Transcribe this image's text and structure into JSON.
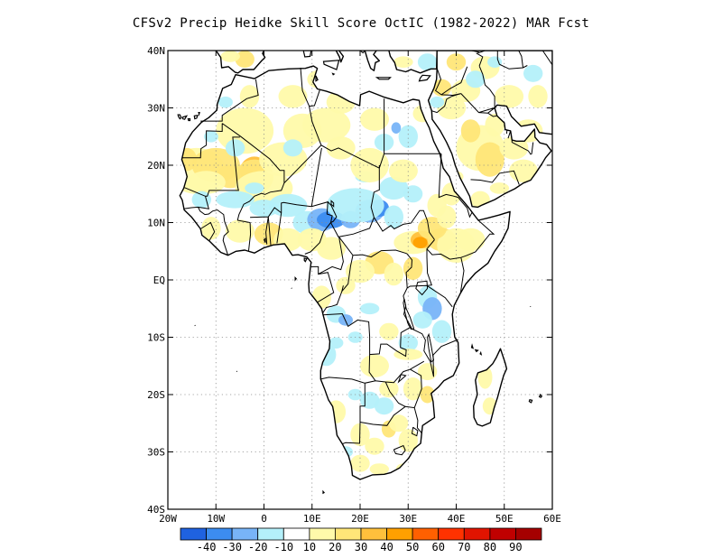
{
  "title": "CFSv2 Precip Heidke Skill Score OctIC (1982-2022) MAR Fcst",
  "map": {
    "lon_range": [
      -20,
      60
    ],
    "lat_range": [
      -40,
      40
    ],
    "lon_ticks": [
      "20W",
      "10W",
      "0",
      "10E",
      "20E",
      "30E",
      "40E",
      "50E",
      "60E"
    ],
    "lat_ticks": [
      "40N",
      "30N",
      "20N",
      "10N",
      "EQ",
      "10S",
      "20S",
      "30S",
      "40S"
    ],
    "grid": "dotted"
  },
  "colorbar": {
    "colors": [
      "#1f62e0",
      "#3c8cf0",
      "#78b4f8",
      "#b4f0fa",
      "#ffffff",
      "#fffaaa",
      "#ffe678",
      "#ffc03c",
      "#ffa000",
      "#ff6000",
      "#ff3200",
      "#e11400",
      "#c00000",
      "#a50000"
    ],
    "labels": [
      "-40",
      "-30",
      "-20",
      "-10",
      "10",
      "20",
      "30",
      "40",
      "50",
      "60",
      "70",
      "80",
      "90"
    ]
  },
  "colors": {
    "land_fill": "#ffffff",
    "positive_light": "#fffaaa",
    "positive_mid": "#ffe678",
    "positive_strong": "#ffc03c",
    "positive_peak": "#ffa000",
    "negative_light": "#b4f0fa",
    "negative_mid": "#78b4f8",
    "negative_strong": "#3c8cf0"
  }
}
